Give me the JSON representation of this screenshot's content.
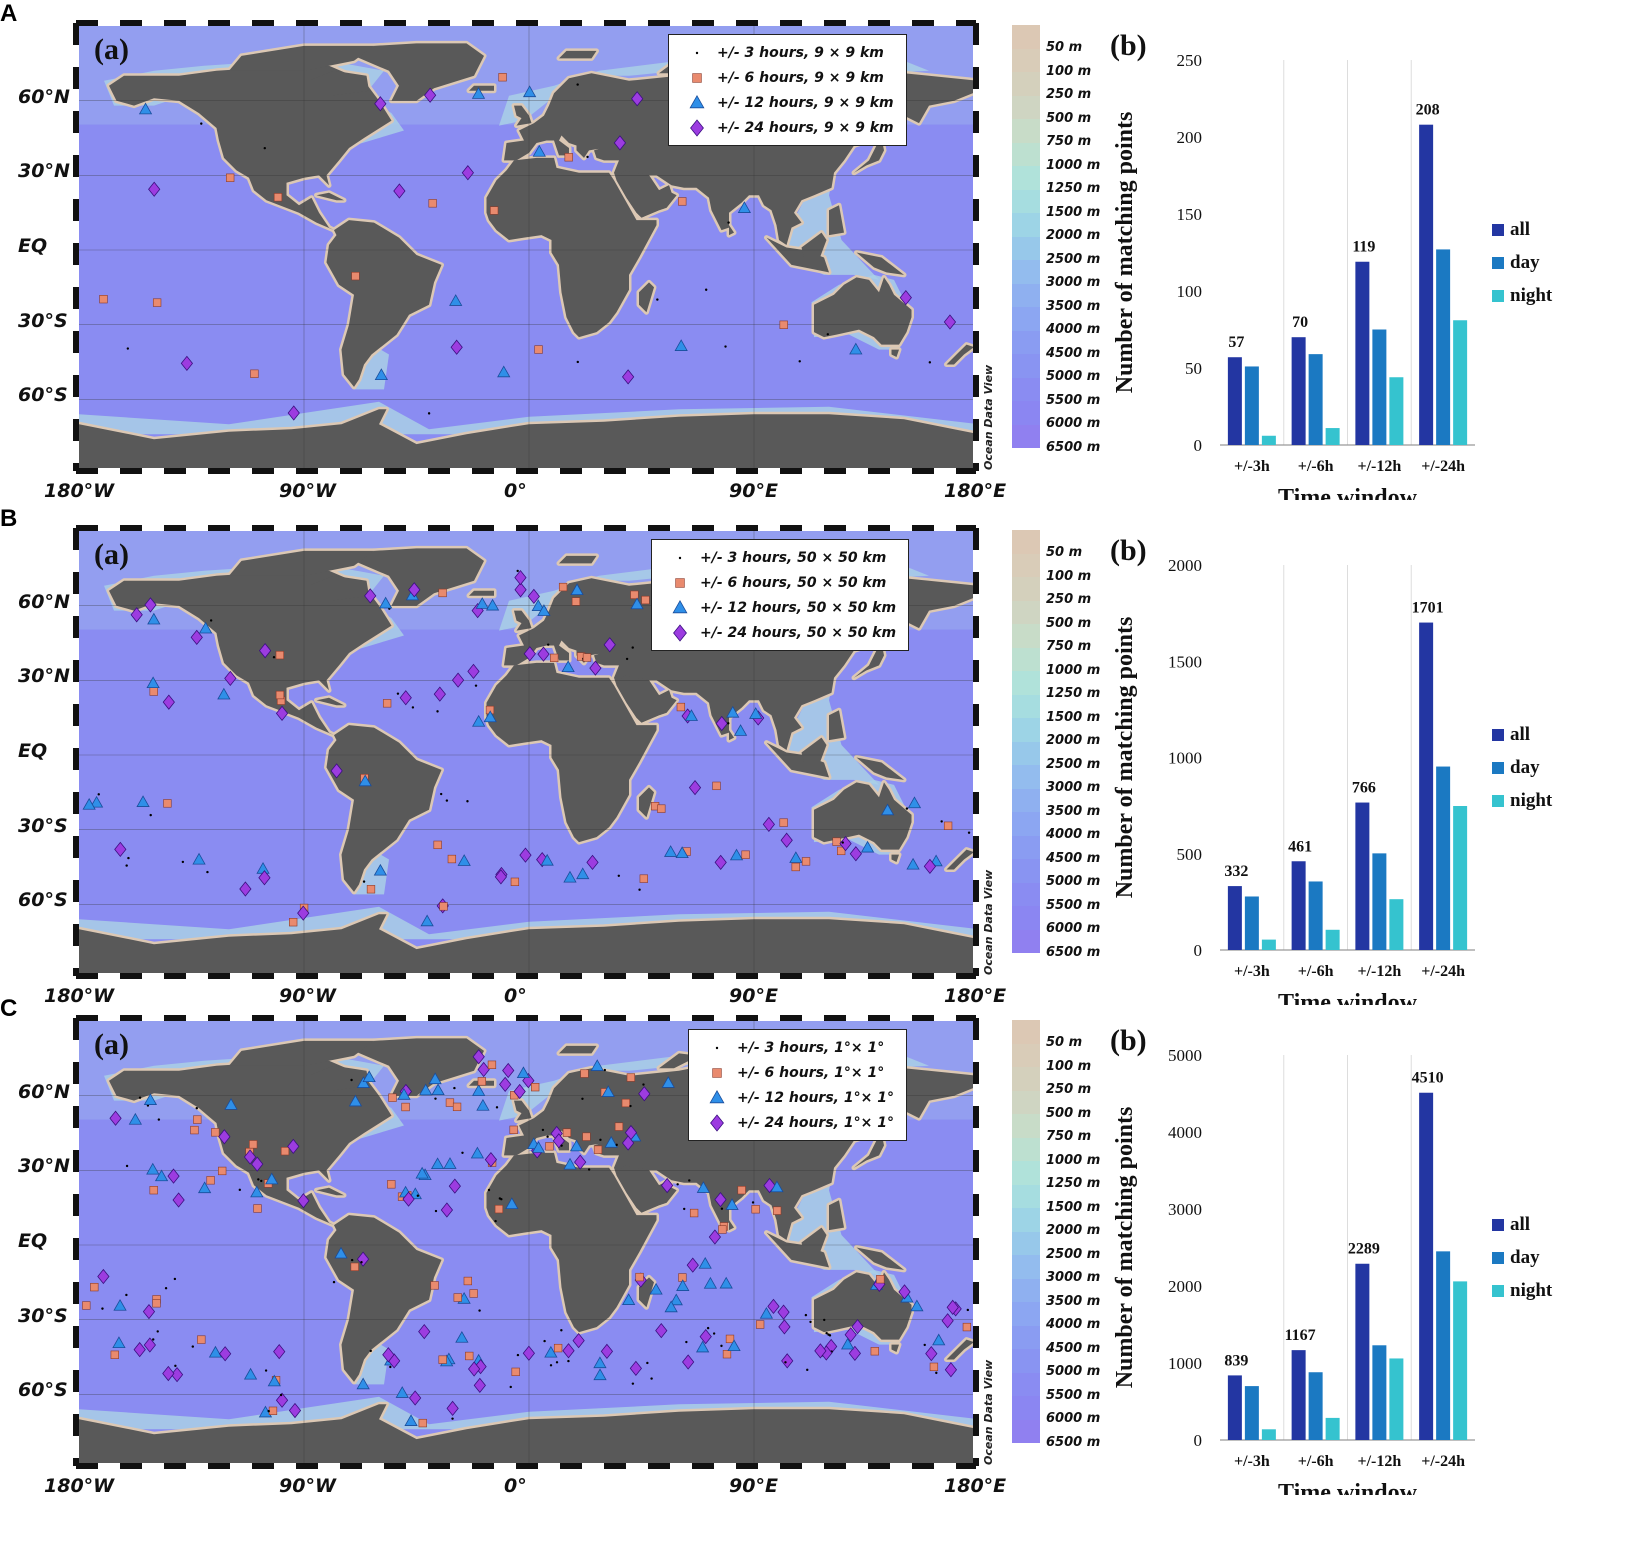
{
  "colors": {
    "all": "#2336a2",
    "day": "#1b79c2",
    "night": "#35c3cf",
    "ocean": "#8a8cf2",
    "land": "#595959",
    "shelf": "#dcc8b4"
  },
  "map_labels": {
    "lat": [
      "60°N",
      "30°N",
      "EQ",
      "30°S",
      "60°S"
    ],
    "lon": [
      "180°W",
      "90°W",
      "0°",
      "90°E",
      "180°E"
    ],
    "subfig": "(a)",
    "odv": "Ocean Data View"
  },
  "depth_scale": [
    "50 m",
    "100 m",
    "250 m",
    "500 m",
    "750 m",
    "1000 m",
    "1250 m",
    "1500 m",
    "2000 m",
    "2500 m",
    "3000 m",
    "3500 m",
    "4000 m",
    "4500 m",
    "5000 m",
    "5500 m",
    "6000 m",
    "6500 m"
  ],
  "panels": [
    {
      "letter": "A",
      "legend": [
        "+/- 3 hours, 9 × 9 km",
        "+/- 6 hours, 9 × 9 km",
        "+/- 12 hours, 9 × 9 km",
        "+/- 24 hours, 9 × 9 km"
      ],
      "chart": {
        "subfig": "(b)",
        "yticks": [
          "250",
          "200",
          "150",
          "100",
          "50",
          "0"
        ]
      }
    },
    {
      "letter": "B",
      "legend": [
        "+/- 3 hours, 50 × 50 km",
        "+/- 6 hours, 50 × 50 km",
        "+/- 12 hours, 50 × 50 km",
        "+/- 24 hours, 50 × 50 km"
      ],
      "chart": {
        "subfig": "(b)",
        "yticks": [
          "2000",
          "1500",
          "1000",
          "500",
          "0"
        ]
      }
    },
    {
      "letter": "C",
      "legend": [
        "+/- 3 hours, 1°× 1°",
        "+/- 6 hours, 1°× 1°",
        "+/- 12 hours, 1°× 1°",
        "+/- 24 hours, 1°× 1°"
      ],
      "chart": {
        "subfig": "(b)",
        "yticks": [
          "5000",
          "4000",
          "3000",
          "2000",
          "1000",
          "0"
        ]
      }
    }
  ],
  "chart_data": [
    {
      "type": "bar",
      "categories": [
        "+/-3h",
        "+/-6h",
        "+/-12h",
        "+/-24h"
      ],
      "series": [
        {
          "name": "all",
          "values": [
            57,
            70,
            119,
            208
          ]
        },
        {
          "name": "day",
          "values": [
            51,
            59,
            75,
            127
          ]
        },
        {
          "name": "night",
          "values": [
            6,
            11,
            44,
            81
          ]
        }
      ],
      "labels": [
        "57",
        "70",
        "119",
        "208"
      ],
      "xlabel": "Time window",
      "ylabel": "Number of matching points",
      "ylim": [
        0,
        250
      ],
      "legend": "right",
      "grid": "vertical"
    },
    {
      "type": "bar",
      "categories": [
        "+/-3h",
        "+/-6h",
        "+/-12h",
        "+/-24h"
      ],
      "series": [
        {
          "name": "all",
          "values": [
            332,
            461,
            766,
            1701
          ]
        },
        {
          "name": "day",
          "values": [
            278,
            356,
            502,
            953
          ]
        },
        {
          "name": "night",
          "values": [
            54,
            105,
            264,
            748
          ]
        }
      ],
      "labels": [
        "332",
        "461",
        "766",
        "1701"
      ],
      "xlabel": "Time window",
      "ylabel": "Number of matching points",
      "ylim": [
        0,
        2000
      ],
      "legend": "right",
      "grid": "vertical"
    },
    {
      "type": "bar",
      "categories": [
        "+/-3h",
        "+/-6h",
        "+/-12h",
        "+/-24h"
      ],
      "series": [
        {
          "name": "all",
          "values": [
            839,
            1167,
            2289,
            4510
          ]
        },
        {
          "name": "day",
          "values": [
            700,
            880,
            1230,
            2450
          ]
        },
        {
          "name": "night",
          "values": [
            139,
            287,
            1059,
            2060
          ]
        }
      ],
      "labels": [
        "839",
        "1167",
        "2289",
        "4510"
      ],
      "xlabel": "Time window",
      "ylabel": "Number of matching points",
      "ylim": [
        0,
        5000
      ],
      "legend": "right",
      "grid": "vertical"
    }
  ]
}
